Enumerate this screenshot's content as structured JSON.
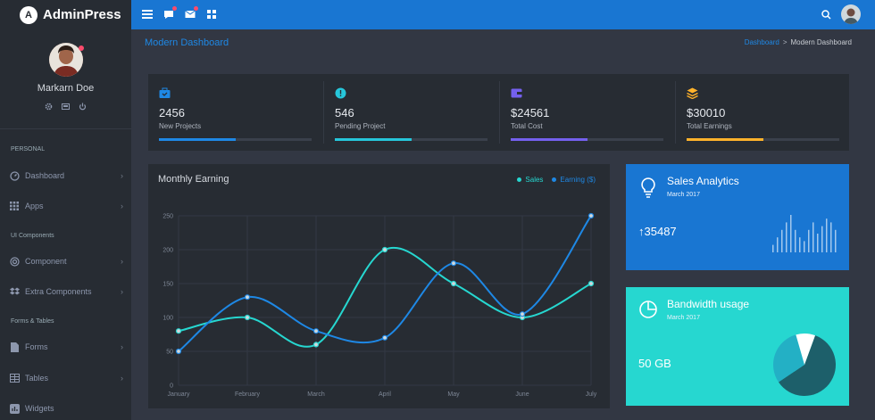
{
  "brand": {
    "logo_letter": "A",
    "name": "AdminPress"
  },
  "topbar": {
    "icons": [
      "menu-icon",
      "message-icon",
      "mail-icon",
      "grid-icon",
      "search-icon"
    ]
  },
  "profile": {
    "name": "Markarn Doe"
  },
  "sidebar": {
    "sections": [
      {
        "caption": "PERSONAL",
        "items": [
          {
            "label": "Dashboard",
            "icon": "gauge-icon"
          },
          {
            "label": "Apps",
            "icon": "apps-grid-icon"
          }
        ]
      },
      {
        "caption": "UI Components",
        "items": [
          {
            "label": "Component",
            "icon": "target-icon"
          },
          {
            "label": "Extra Components",
            "icon": "dropbox-icon"
          }
        ]
      },
      {
        "caption": "Forms & Tables",
        "items": [
          {
            "label": "Forms",
            "icon": "file-icon"
          },
          {
            "label": "Tables",
            "icon": "table-icon"
          },
          {
            "label": "Widgets",
            "icon": "widget-icon"
          }
        ]
      }
    ]
  },
  "page": {
    "title": "Modern Dashboard"
  },
  "breadcrumb": {
    "link": "Dashboard",
    "separator": ">",
    "current": "Modern Dashboard"
  },
  "stats": [
    {
      "value": "2456",
      "label": "New Projects",
      "progress": 0.5,
      "color": "#1e88e5",
      "icon": "briefcase-icon"
    },
    {
      "value": "546",
      "label": "Pending Project",
      "progress": 0.5,
      "color": "#26c6da",
      "icon": "alert-icon"
    },
    {
      "value": "$24561",
      "label": "Total Cost",
      "progress": 0.5,
      "color": "#7460ee",
      "icon": "wallet-icon"
    },
    {
      "value": "$30010",
      "label": "Total Earnings",
      "progress": 0.5,
      "color": "#ffb22b",
      "icon": "layers-icon"
    }
  ],
  "monthly_earning": {
    "title": "Monthly Earning"
  },
  "chart_data": {
    "type": "line",
    "title": "Monthly Earning",
    "categories": [
      "January",
      "February",
      "March",
      "April",
      "May",
      "June",
      "July"
    ],
    "series": [
      {
        "name": "Sales",
        "color": "#26d7d0",
        "values": [
          80,
          100,
          60,
          200,
          150,
          100,
          150
        ]
      },
      {
        "name": "Earning ($)",
        "color": "#1e88e5",
        "values": [
          50,
          130,
          80,
          70,
          180,
          105,
          250
        ]
      }
    ],
    "yticks": [
      0,
      50,
      100,
      150,
      200,
      250
    ],
    "ylim": [
      0,
      250
    ],
    "grid": true,
    "legend": "top-right"
  },
  "sales_analytics": {
    "title": "Sales Analytics",
    "subtitle": "March 2017",
    "value": "35487",
    "trend": "↑",
    "bars": [
      2,
      4,
      6,
      8,
      10,
      6,
      4,
      3,
      6,
      8,
      5,
      7,
      9,
      8,
      6
    ]
  },
  "bandwidth": {
    "title": "Bandwidth usage",
    "subtitle": "March 2017",
    "value": "50 GB",
    "slices": [
      0.6,
      0.3,
      0.1
    ]
  }
}
